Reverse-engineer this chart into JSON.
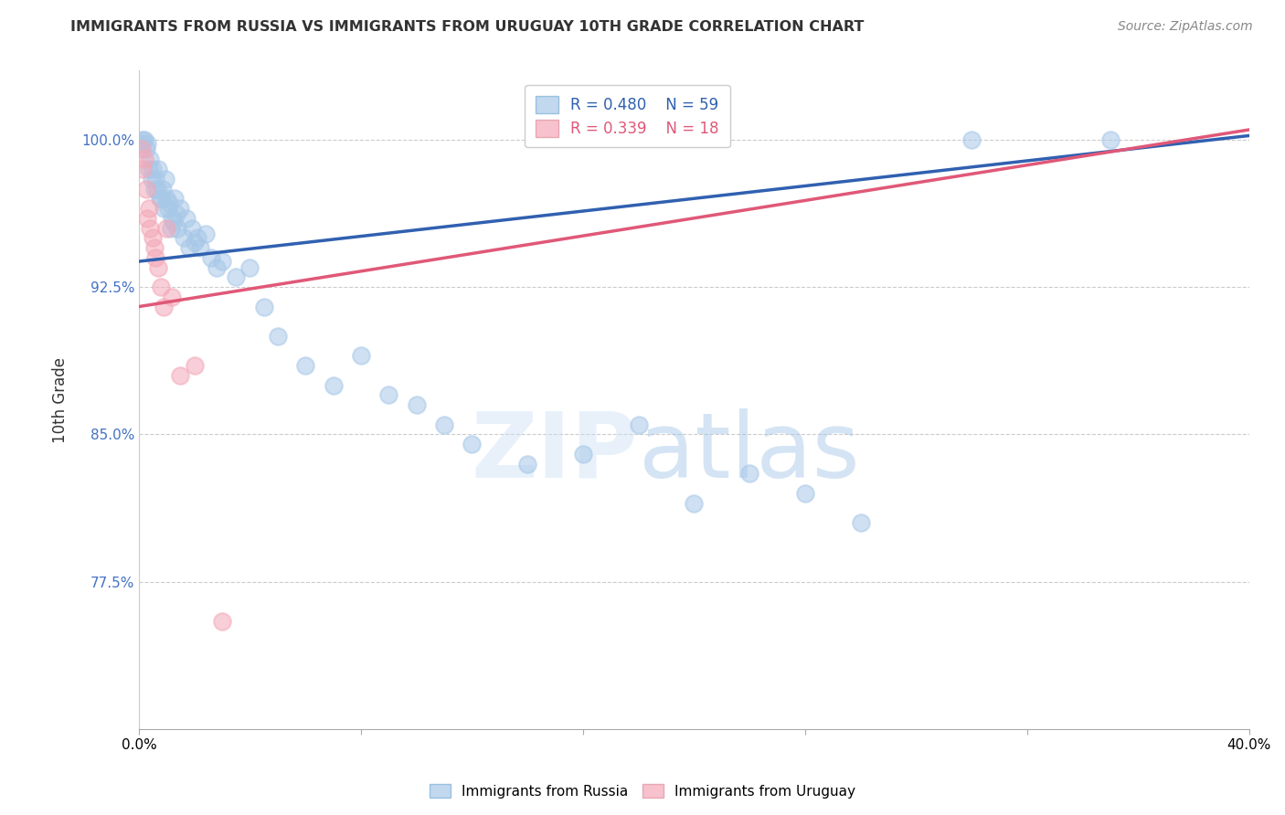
{
  "title": "IMMIGRANTS FROM RUSSIA VS IMMIGRANTS FROM URUGUAY 10TH GRADE CORRELATION CHART",
  "source": "Source: ZipAtlas.com",
  "ylabel": "10th Grade",
  "xlim": [
    0.0,
    40.0
  ],
  "ylim": [
    70.0,
    103.5
  ],
  "yticks": [
    77.5,
    85.0,
    92.5,
    100.0
  ],
  "ytick_labels": [
    "77.5%",
    "85.0%",
    "92.5%",
    "100.0%"
  ],
  "russia_color": "#a8c8e8",
  "uruguay_color": "#f4a8b8",
  "russia_line_color": "#3060b0",
  "uruguay_line_color": "#e05878",
  "R_russia": 0.48,
  "N_russia": 59,
  "R_uruguay": 0.339,
  "N_uruguay": 18,
  "legend_label_russia": "Immigrants from Russia",
  "legend_label_uruguay": "Immigrants from Uruguay",
  "russia_x": [
    0.1,
    0.15,
    0.2,
    0.25,
    0.3,
    0.35,
    0.4,
    0.45,
    0.5,
    0.55,
    0.6,
    0.65,
    0.7,
    0.75,
    0.8,
    0.85,
    0.9,
    0.95,
    1.0,
    1.05,
    1.1,
    1.15,
    1.2,
    1.25,
    1.3,
    1.35,
    1.4,
    1.5,
    1.6,
    1.7,
    1.8,
    1.9,
    2.0,
    2.1,
    2.2,
    2.4,
    2.6,
    2.8,
    3.0,
    3.5,
    4.0,
    4.5,
    5.0,
    6.0,
    7.0,
    8.0,
    9.0,
    10.0,
    11.0,
    12.0,
    14.0,
    16.0,
    18.0,
    20.0,
    22.0,
    24.0,
    26.0,
    30.0,
    35.0
  ],
  "russia_y": [
    99.8,
    100.0,
    100.0,
    99.5,
    99.8,
    98.5,
    99.0,
    98.0,
    98.5,
    97.5,
    98.0,
    97.5,
    98.5,
    97.0,
    97.0,
    97.5,
    96.5,
    98.0,
    97.0,
    96.5,
    96.8,
    95.5,
    96.0,
    95.8,
    97.0,
    96.2,
    95.5,
    96.5,
    95.0,
    96.0,
    94.5,
    95.5,
    94.8,
    95.0,
    94.5,
    95.2,
    94.0,
    93.5,
    93.8,
    93.0,
    93.5,
    91.5,
    90.0,
    88.5,
    87.5,
    89.0,
    87.0,
    86.5,
    85.5,
    84.5,
    83.5,
    84.0,
    85.5,
    81.5,
    83.0,
    82.0,
    80.5,
    100.0,
    100.0
  ],
  "uruguay_x": [
    0.1,
    0.15,
    0.2,
    0.25,
    0.3,
    0.35,
    0.4,
    0.5,
    0.55,
    0.6,
    0.7,
    0.8,
    0.9,
    1.0,
    1.2,
    1.5,
    2.0,
    3.0
  ],
  "uruguay_y": [
    99.5,
    98.5,
    99.0,
    97.5,
    96.0,
    96.5,
    95.5,
    95.0,
    94.5,
    94.0,
    93.5,
    92.5,
    91.5,
    95.5,
    92.0,
    88.0,
    88.5,
    75.5
  ],
  "russia_trendline_x0": 0.0,
  "russia_trendline_y0": 93.8,
  "russia_trendline_x1": 40.0,
  "russia_trendline_y1": 100.2,
  "uruguay_trendline_x0": 0.0,
  "uruguay_trendline_y0": 91.5,
  "uruguay_trendline_x1": 40.0,
  "uruguay_trendline_y1": 100.5
}
